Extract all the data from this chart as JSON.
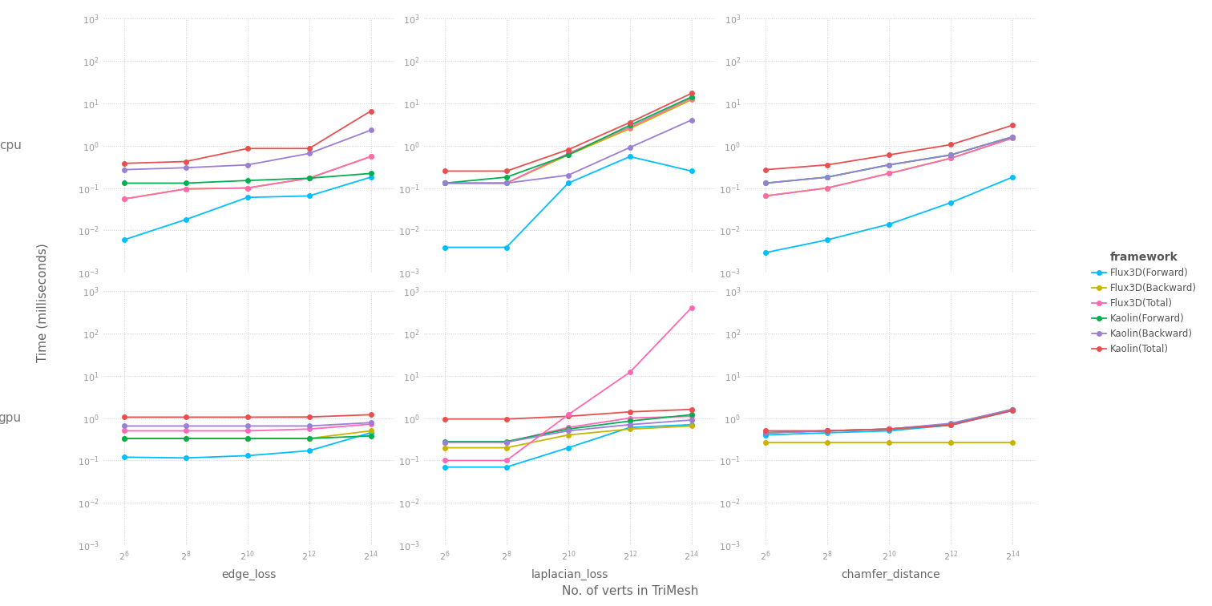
{
  "x_vals": [
    64,
    256,
    1024,
    4096,
    16384
  ],
  "x_labels": [
    "2^6",
    "2^8",
    "2^10",
    "2^12",
    "2^14"
  ],
  "metrics": [
    "edge_loss",
    "laplacian_loss",
    "chamfer_distance"
  ],
  "devices": [
    "cpu",
    "gpu"
  ],
  "series": {
    "Flux3D(Forward)": {
      "color": "#00bfff"
    },
    "Flux3D(Backward)": {
      "color": "#c8b400"
    },
    "Flux3D(Total)": {
      "color": "#ff69b4"
    },
    "Kaolin(Forward)": {
      "color": "#00b050"
    },
    "Kaolin(Backward)": {
      "color": "#9b7fd4"
    },
    "Kaolin(Total)": {
      "color": "#e85050"
    }
  },
  "data": {
    "edge_loss": {
      "cpu": {
        "Flux3D(Forward)": [
          0.006,
          0.018,
          0.06,
          0.065,
          0.18
        ],
        "Flux3D(Backward)": [
          0.055,
          0.095,
          0.1,
          0.17,
          0.55
        ],
        "Flux3D(Total)": [
          0.055,
          0.095,
          0.1,
          0.17,
          0.55
        ],
        "Kaolin(Forward)": [
          0.13,
          0.13,
          0.15,
          0.17,
          0.22
        ],
        "Kaolin(Backward)": [
          0.27,
          0.3,
          0.35,
          0.65,
          2.3
        ],
        "Kaolin(Total)": [
          0.38,
          0.42,
          0.85,
          0.85,
          6.5
        ]
      },
      "gpu": {
        "Flux3D(Forward)": [
          0.12,
          0.115,
          0.13,
          0.17,
          0.45
        ],
        "Flux3D(Backward)": [
          0.33,
          0.33,
          0.33,
          0.33,
          0.5
        ],
        "Flux3D(Total)": [
          0.5,
          0.5,
          0.5,
          0.55,
          0.72
        ],
        "Kaolin(Forward)": [
          0.33,
          0.33,
          0.33,
          0.33,
          0.38
        ],
        "Kaolin(Backward)": [
          0.65,
          0.65,
          0.65,
          0.65,
          0.78
        ],
        "Kaolin(Total)": [
          1.05,
          1.05,
          1.05,
          1.06,
          1.2
        ]
      }
    },
    "laplacian_loss": {
      "cpu": {
        "Flux3D(Forward)": [
          0.004,
          0.004,
          0.13,
          0.55,
          0.25
        ],
        "Flux3D(Backward)": [
          0.13,
          0.13,
          0.6,
          2.5,
          12.0
        ],
        "Flux3D(Total)": [
          0.13,
          0.13,
          0.65,
          2.7,
          13.0
        ],
        "Kaolin(Forward)": [
          0.13,
          0.18,
          0.6,
          3.0,
          14.0
        ],
        "Kaolin(Backward)": [
          0.13,
          0.13,
          0.2,
          0.9,
          4.0
        ],
        "Kaolin(Total)": [
          0.25,
          0.25,
          0.8,
          3.5,
          17.0
        ]
      },
      "gpu": {
        "Flux3D(Forward)": [
          0.07,
          0.07,
          0.2,
          0.6,
          0.7
        ],
        "Flux3D(Backward)": [
          0.2,
          0.2,
          0.4,
          0.55,
          0.65
        ],
        "Flux3D(Total)": [
          0.27,
          0.27,
          0.6,
          1.0,
          1.1
        ],
        "Kaolin(Forward)": [
          0.28,
          0.28,
          0.55,
          0.85,
          1.2
        ],
        "Kaolin(Backward)": [
          0.27,
          0.27,
          0.5,
          0.7,
          0.9
        ],
        "Kaolin(Total)": [
          0.95,
          0.95,
          1.1,
          1.4,
          1.6
        ],
        "Flux3D(Pink)": [
          0.1,
          0.1,
          1.2,
          12.0,
          400.0
        ]
      }
    },
    "chamfer_distance": {
      "cpu": {
        "Flux3D(Forward)": [
          0.003,
          0.006,
          0.014,
          0.045,
          0.18
        ],
        "Flux3D(Backward)": [
          0.065,
          0.1,
          0.22,
          0.5,
          1.5
        ],
        "Flux3D(Total)": [
          0.065,
          0.1,
          0.22,
          0.5,
          1.5
        ],
        "Kaolin(Forward)": [
          0.13,
          0.18,
          0.35,
          0.6,
          1.6
        ],
        "Kaolin(Backward)": [
          0.13,
          0.18,
          0.35,
          0.6,
          1.6
        ],
        "Kaolin(Total)": [
          0.27,
          0.35,
          0.6,
          1.05,
          3.0
        ]
      },
      "gpu": {
        "Flux3D(Forward)": [
          0.4,
          0.45,
          0.5,
          0.68,
          1.5
        ],
        "Flux3D(Backward)": [
          0.27,
          0.27,
          0.27,
          0.27,
          0.27
        ],
        "Flux3D(Total)": [
          0.45,
          0.5,
          0.55,
          0.72,
          1.6
        ],
        "Kaolin(Forward)": [
          0.45,
          0.5,
          0.55,
          0.72,
          1.6
        ],
        "Kaolin(Backward)": [
          0.45,
          0.5,
          0.55,
          0.75,
          1.6
        ],
        "Kaolin(Total)": [
          0.5,
          0.5,
          0.55,
          0.68,
          1.5
        ]
      }
    }
  },
  "xlabel": "No. of verts in TriMesh",
  "ylabel": "Time (milliseconds)",
  "background_color": "#ffffff",
  "grid_color": "#c8c8c8",
  "legend_title": "framework"
}
